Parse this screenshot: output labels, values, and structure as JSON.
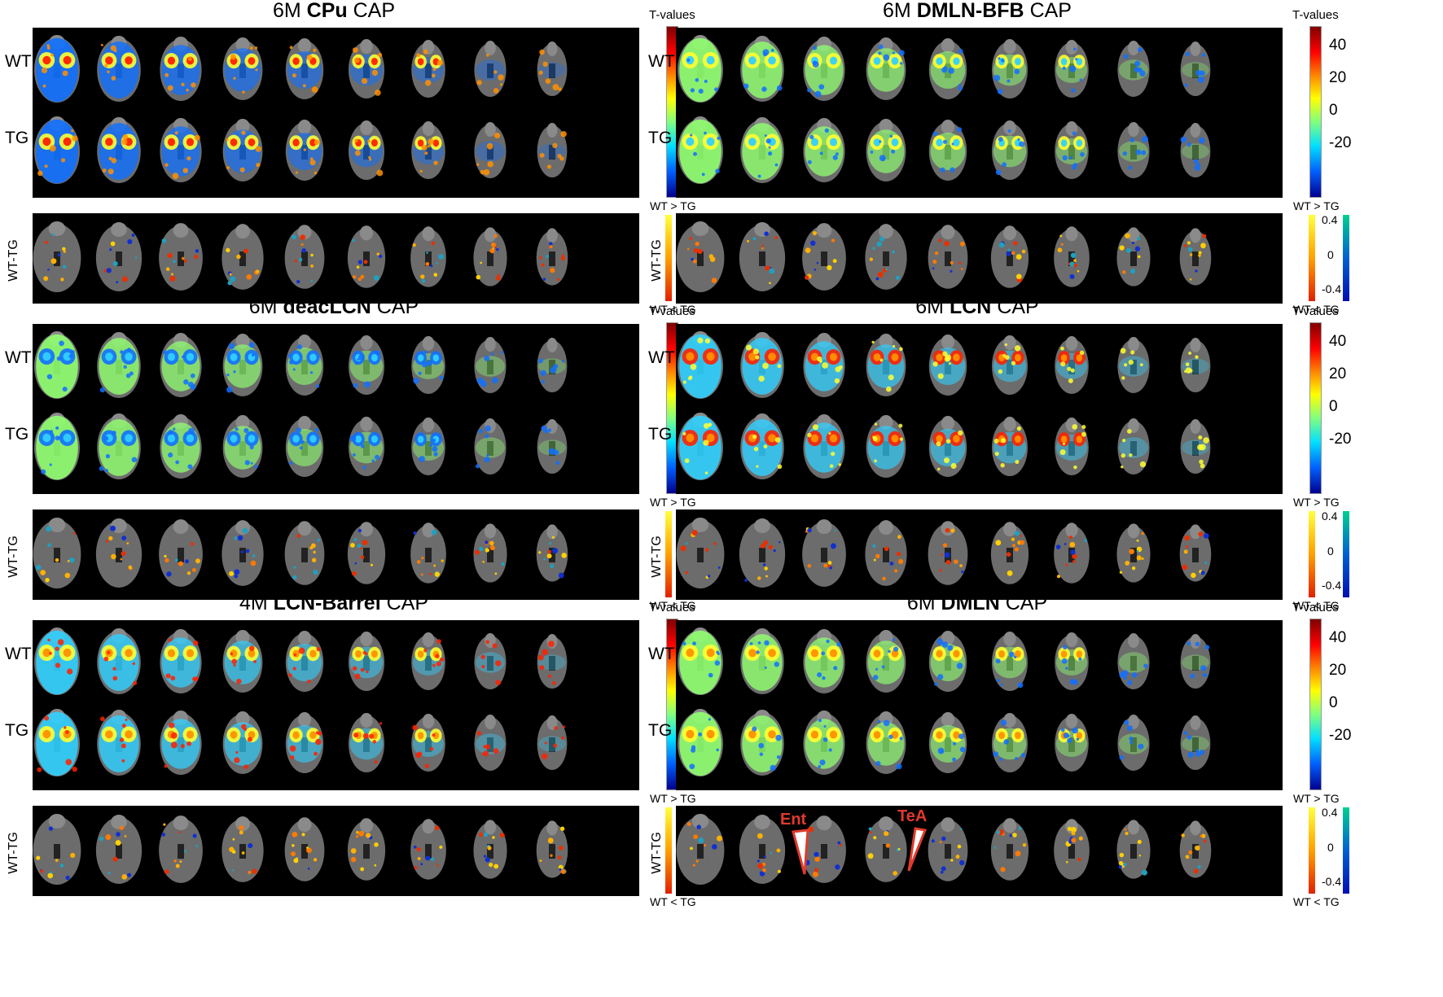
{
  "row_labels": {
    "wt": "WT",
    "tg": "TG",
    "diff": "WT-TG"
  },
  "colorbar": {
    "title": "T-values",
    "ticks": [
      "40",
      "20",
      "0",
      "-20"
    ],
    "top_label": "WT > TG",
    "bottom_label": "WT < TG",
    "diff_ticks": [
      "0.4",
      "0",
      "-0.4"
    ]
  },
  "panels": [
    {
      "prefix": "6M",
      "name": "CPu",
      "suffix": "CAP",
      "pattern": "cpu"
    },
    {
      "prefix": "6M",
      "name": "DMLN-BFB",
      "suffix": "CAP",
      "pattern": "dmln-bfb"
    },
    {
      "prefix": "6M",
      "name": "deacLCN",
      "suffix": "CAP",
      "pattern": "deaclcn"
    },
    {
      "prefix": "6M",
      "name": "LCN",
      "suffix": "CAP",
      "pattern": "lcn"
    },
    {
      "prefix": "4M",
      "name": "LCN-Barrel",
      "suffix": "CAP",
      "pattern": "lcn-barrel"
    },
    {
      "prefix": "6M",
      "name": "DMLN",
      "suffix": "CAP",
      "pattern": "dmln"
    }
  ],
  "annotations": [
    {
      "text": "Ent",
      "panel": 5
    },
    {
      "text": "TeA",
      "panel": 5
    }
  ],
  "colors": {
    "dark_red": "#800000",
    "red": "#ff2000",
    "orange": "#ff9000",
    "yellow": "#ffff30",
    "green": "#90ff70",
    "cyan": "#30d0ff",
    "blue": "#1070ff",
    "navy": "#00008f",
    "annotation": "#e03a2e"
  }
}
